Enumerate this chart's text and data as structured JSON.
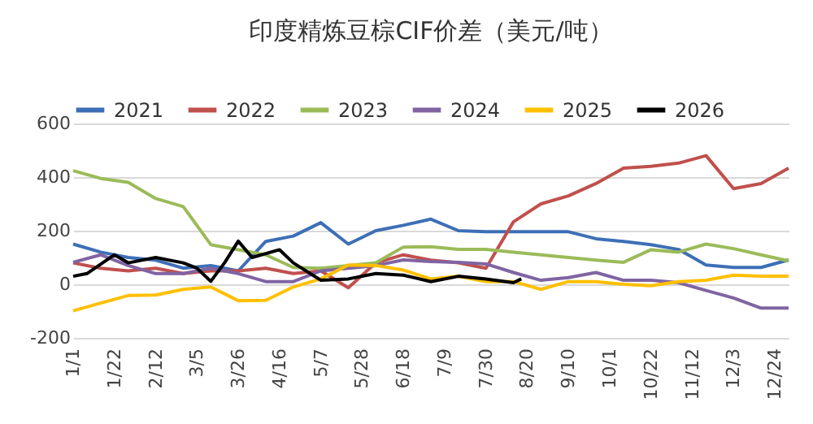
{
  "chart_data": {
    "type": "line",
    "title": "印度精炼豆棕CIF价差（美元/吨）",
    "x": [
      "--01-01",
      "--01-15",
      "--01-29",
      "--02-12",
      "--02-26",
      "--03-12",
      "--03-26",
      "--04-09",
      "--04-23",
      "--05-07",
      "--05-21",
      "--06-04",
      "--06-18",
      "--07-02",
      "--07-16",
      "--07-30",
      "--08-13",
      "--08-27",
      "--09-10",
      "--09-24",
      "--10-08",
      "--10-22",
      "--11-05",
      "--11-19",
      "--12-03",
      "--12-17",
      "--12-31"
    ],
    "series": [
      {
        "name": "2021",
        "color": "#3d6fb6",
        "values": [
          150,
          120,
          100,
          90,
          60,
          70,
          50,
          160,
          180,
          230,
          150,
          200,
          220,
          243,
          200,
          196,
          196,
          196,
          196,
          170,
          160,
          148,
          130,
          72,
          63,
          63,
          91
        ]
      },
      {
        "name": "2022",
        "color": "#c0504d",
        "values": [
          80,
          60,
          50,
          60,
          40,
          50,
          50,
          60,
          40,
          50,
          -13,
          80,
          110,
          90,
          80,
          60,
          233,
          300,
          330,
          376,
          433,
          440,
          452,
          480,
          357,
          376,
          433
        ]
      },
      {
        "name": "2023",
        "color": "#9bbb59",
        "values": [
          424,
          395,
          380,
          320,
          290,
          148,
          129,
          110,
          63,
          60,
          70,
          80,
          139,
          140,
          130,
          130,
          120,
          110,
          100,
          90,
          82,
          129,
          120,
          150,
          133,
          110,
          87
        ]
      },
      {
        "name": "2024",
        "color": "#8064a2",
        "values": [
          82,
          110,
          70,
          40,
          40,
          60,
          40,
          10,
          10,
          50,
          60,
          70,
          91,
          85,
          82,
          76,
          44,
          15,
          25,
          44,
          15,
          15,
          6,
          -23,
          -51,
          -89,
          -89
        ]
      },
      {
        "name": "2025",
        "color": "#ffc000",
        "values": [
          -99,
          -70,
          -42,
          -40,
          -19,
          -10,
          -61,
          -60,
          -10,
          20,
          72,
          70,
          53,
          20,
          30,
          10,
          10,
          -19,
          10,
          10,
          0,
          -5,
          10,
          15,
          34,
          30,
          30
        ]
      },
      {
        "name": "2026",
        "color": "#000000",
        "x": [
          "--01-01",
          "--01-08",
          "--01-22",
          "--01-29",
          "--02-12",
          "--02-26",
          "--03-05",
          "--03-12",
          "--03-19",
          "--03-26",
          "--04-02",
          "--04-16",
          "--04-23",
          "--05-07",
          "--05-21",
          "--06-04",
          "--06-18",
          "--07-02",
          "--07-16",
          "--07-30",
          "--08-13",
          "--08-17"
        ],
        "values": [
          30,
          40,
          110,
          80,
          100,
          80,
          60,
          11,
          80,
          161,
          100,
          129,
          80,
          15,
          20,
          40,
          34,
          10,
          30,
          20,
          6,
          20
        ]
      }
    ],
    "xlim": [
      "--01-01",
      "--12-31"
    ],
    "xticks": [
      {
        "value": "--01-01",
        "label": "1/1"
      },
      {
        "value": "--01-22",
        "label": "1/22"
      },
      {
        "value": "--02-12",
        "label": "2/12"
      },
      {
        "value": "--03-05",
        "label": "3/5"
      },
      {
        "value": "--03-26",
        "label": "3/26"
      },
      {
        "value": "--04-16",
        "label": "4/16"
      },
      {
        "value": "--05-07",
        "label": "5/7"
      },
      {
        "value": "--05-28",
        "label": "5/28"
      },
      {
        "value": "--06-18",
        "label": "6/18"
      },
      {
        "value": "--07-09",
        "label": "7/9"
      },
      {
        "value": "--07-30",
        "label": "7/30"
      },
      {
        "value": "--08-20",
        "label": "8/20"
      },
      {
        "value": "--09-10",
        "label": "9/10"
      },
      {
        "value": "--10-01",
        "label": "10/1"
      },
      {
        "value": "--10-22",
        "label": "10/22"
      },
      {
        "value": "--11-12",
        "label": "11/12"
      },
      {
        "value": "--12-03",
        "label": "12/3"
      },
      {
        "value": "--12-24",
        "label": "12/24"
      }
    ],
    "ylim": [
      -200,
      600
    ],
    "yticks": [
      -200,
      0,
      200,
      400,
      600
    ],
    "grid": "y",
    "legend": "top"
  }
}
